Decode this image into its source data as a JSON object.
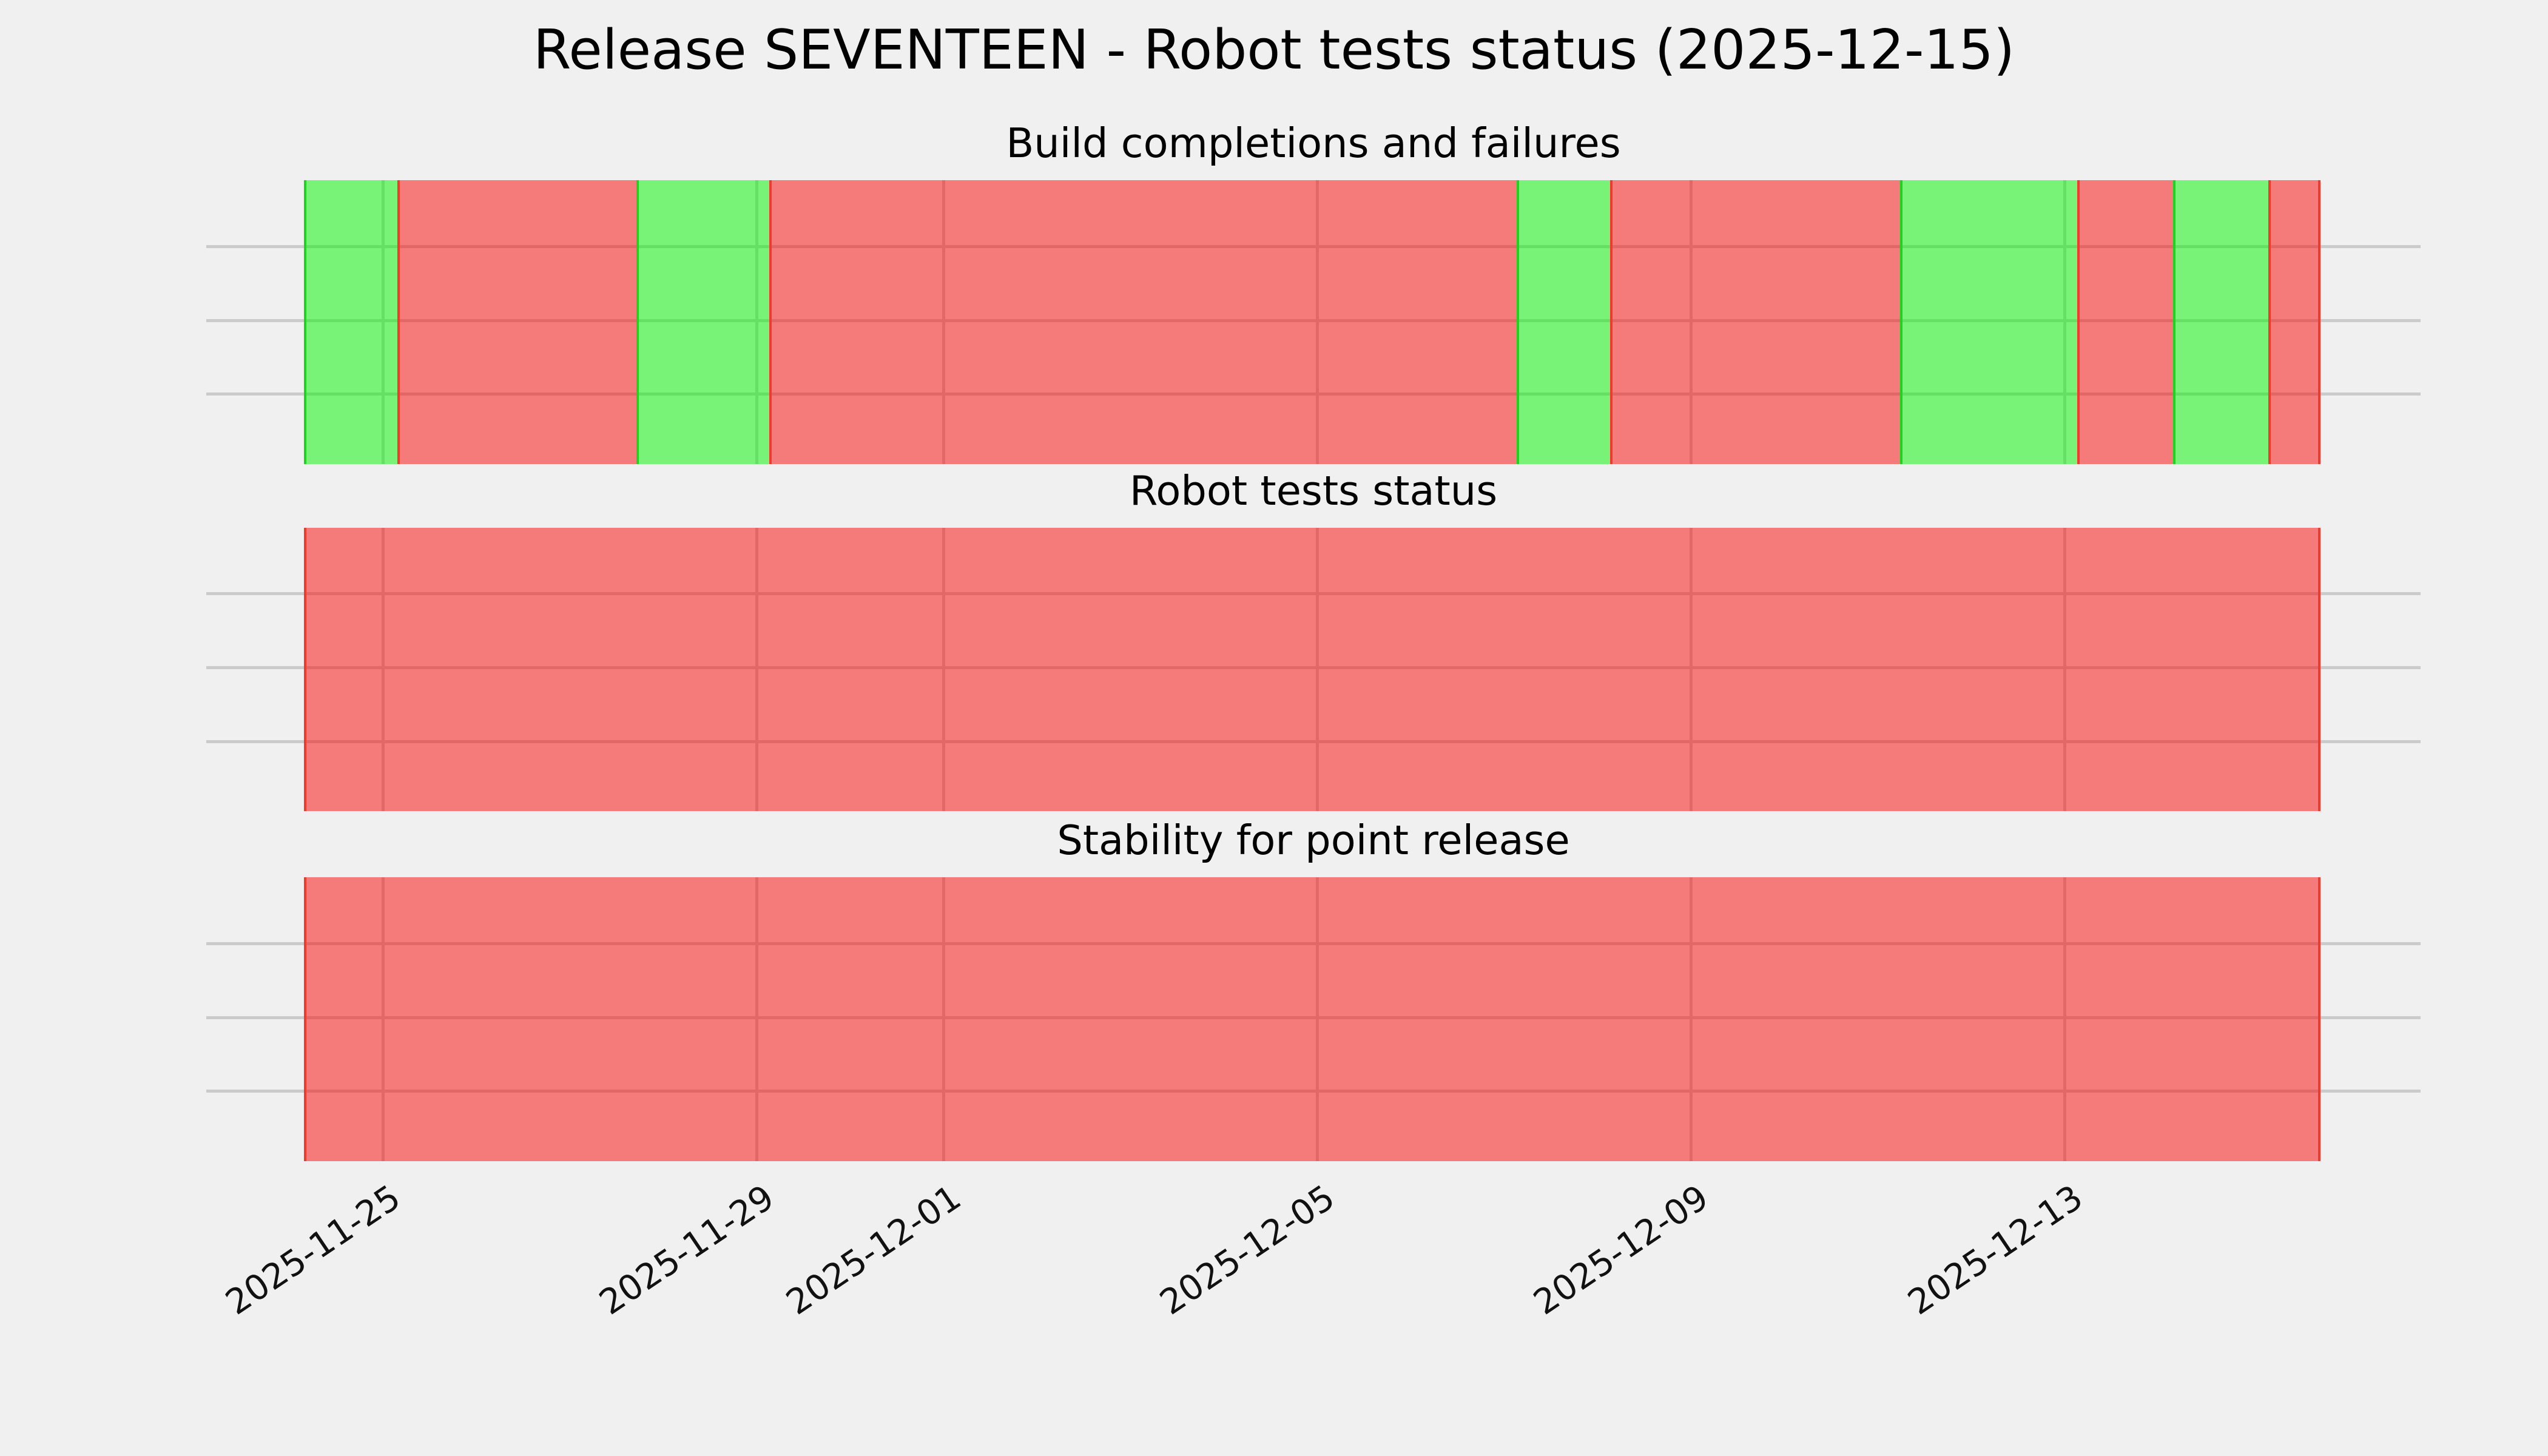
{
  "page": {
    "title": "Release SEVENTEEN - Robot tests status (2025-12-15)"
  },
  "chart_data": {
    "type": "status_timeline",
    "title": "Release SEVENTEEN - Robot tests status (2025-12-15)",
    "colors": {
      "background": "#f0f0f0",
      "grid": "#cbcbcb",
      "success": {
        "fill": "rgba(0,246,0,0.50)",
        "edge": "#21d321"
      },
      "failure": {
        "fill": "rgba(249,6,6,0.50)",
        "edge": "#ef3b2d"
      }
    },
    "x_axis": {
      "start": "2025-11-23T02:30",
      "end": "2025-12-16T19:15",
      "ticks": [
        {
          "label": "2025-11-25",
          "value": "2025-11-25T00:00"
        },
        {
          "label": "2025-11-29",
          "value": "2025-11-29T00:00"
        },
        {
          "label": "2025-12-01",
          "value": "2025-12-01T00:00"
        },
        {
          "label": "2025-12-05",
          "value": "2025-12-05T00:00"
        },
        {
          "label": "2025-12-09",
          "value": "2025-12-09T00:00"
        },
        {
          "label": "2025-12-13",
          "value": "2025-12-13T00:00"
        }
      ]
    },
    "timeline_start": "2025-11-24T04:00",
    "timeline_end": "2025-12-15T17:20",
    "subplots": [
      {
        "title": "Build completions and failures",
        "segments": [
          {
            "status": "success",
            "start": "2025-11-24T04:00",
            "end": "2025-11-25T04:00"
          },
          {
            "status": "failure",
            "start": "2025-11-25T04:00",
            "end": "2025-11-27T17:30"
          },
          {
            "status": "success",
            "start": "2025-11-27T17:30",
            "end": "2025-11-29T03:30"
          },
          {
            "status": "failure",
            "start": "2025-11-29T03:30",
            "end": "2025-12-07T03:30"
          },
          {
            "status": "success",
            "start": "2025-12-07T03:30",
            "end": "2025-12-08T03:30"
          },
          {
            "status": "failure",
            "start": "2025-12-08T03:30",
            "end": "2025-12-11T06:00"
          },
          {
            "status": "success",
            "start": "2025-12-11T06:00",
            "end": "2025-12-13T03:30"
          },
          {
            "status": "failure",
            "start": "2025-12-13T03:30",
            "end": "2025-12-14T04:00"
          },
          {
            "status": "success",
            "start": "2025-12-14T04:00",
            "end": "2025-12-15T04:30"
          },
          {
            "status": "failure",
            "start": "2025-12-15T04:30",
            "end": "2025-12-15T17:20"
          }
        ]
      },
      {
        "title": "Robot tests status",
        "segments": [
          {
            "status": "failure",
            "start": "2025-11-24T04:00",
            "end": "2025-12-15T17:20"
          }
        ]
      },
      {
        "title": "Stability for point release",
        "segments": [
          {
            "status": "failure",
            "start": "2025-11-24T04:00",
            "end": "2025-12-15T17:20"
          }
        ]
      }
    ]
  }
}
